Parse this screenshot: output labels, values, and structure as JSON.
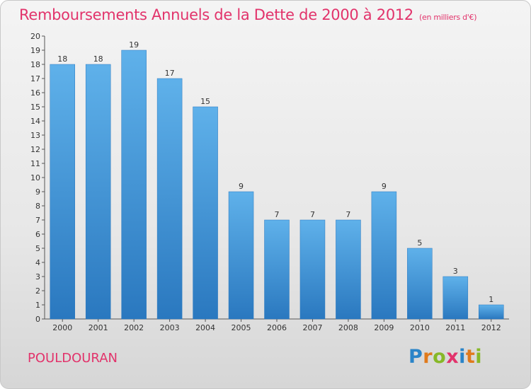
{
  "title": "Remboursements Annuels de la Dette de 2000 à 2012",
  "subtitle": "(en milliers d'€)",
  "commune": "POULDOURAN",
  "logo": {
    "text": "Proxiti",
    "letters": [
      "P",
      "r",
      "o",
      "x",
      "i",
      "t",
      "i"
    ]
  },
  "colors": {
    "title": "#e2336b",
    "bar_top": "#5fb1ea",
    "bar_bottom": "#2a78bf"
  },
  "chart_data": {
    "type": "bar",
    "title": "Remboursements Annuels de la Dette de 2000 à 2012",
    "subtitle": "(en milliers d'€)",
    "xlabel": "",
    "ylabel": "",
    "categories": [
      "2000",
      "2001",
      "2002",
      "2003",
      "2004",
      "2005",
      "2006",
      "2007",
      "2008",
      "2009",
      "2010",
      "2011",
      "2012"
    ],
    "values": [
      18,
      18,
      19,
      17,
      15,
      9,
      7,
      7,
      7,
      9,
      5,
      3,
      1
    ],
    "ylim": [
      0,
      20
    ],
    "yticks": [
      0,
      1,
      2,
      3,
      4,
      5,
      6,
      7,
      8,
      9,
      10,
      11,
      12,
      13,
      14,
      15,
      16,
      17,
      18,
      19,
      20
    ],
    "grid": false,
    "data_labels": true
  }
}
